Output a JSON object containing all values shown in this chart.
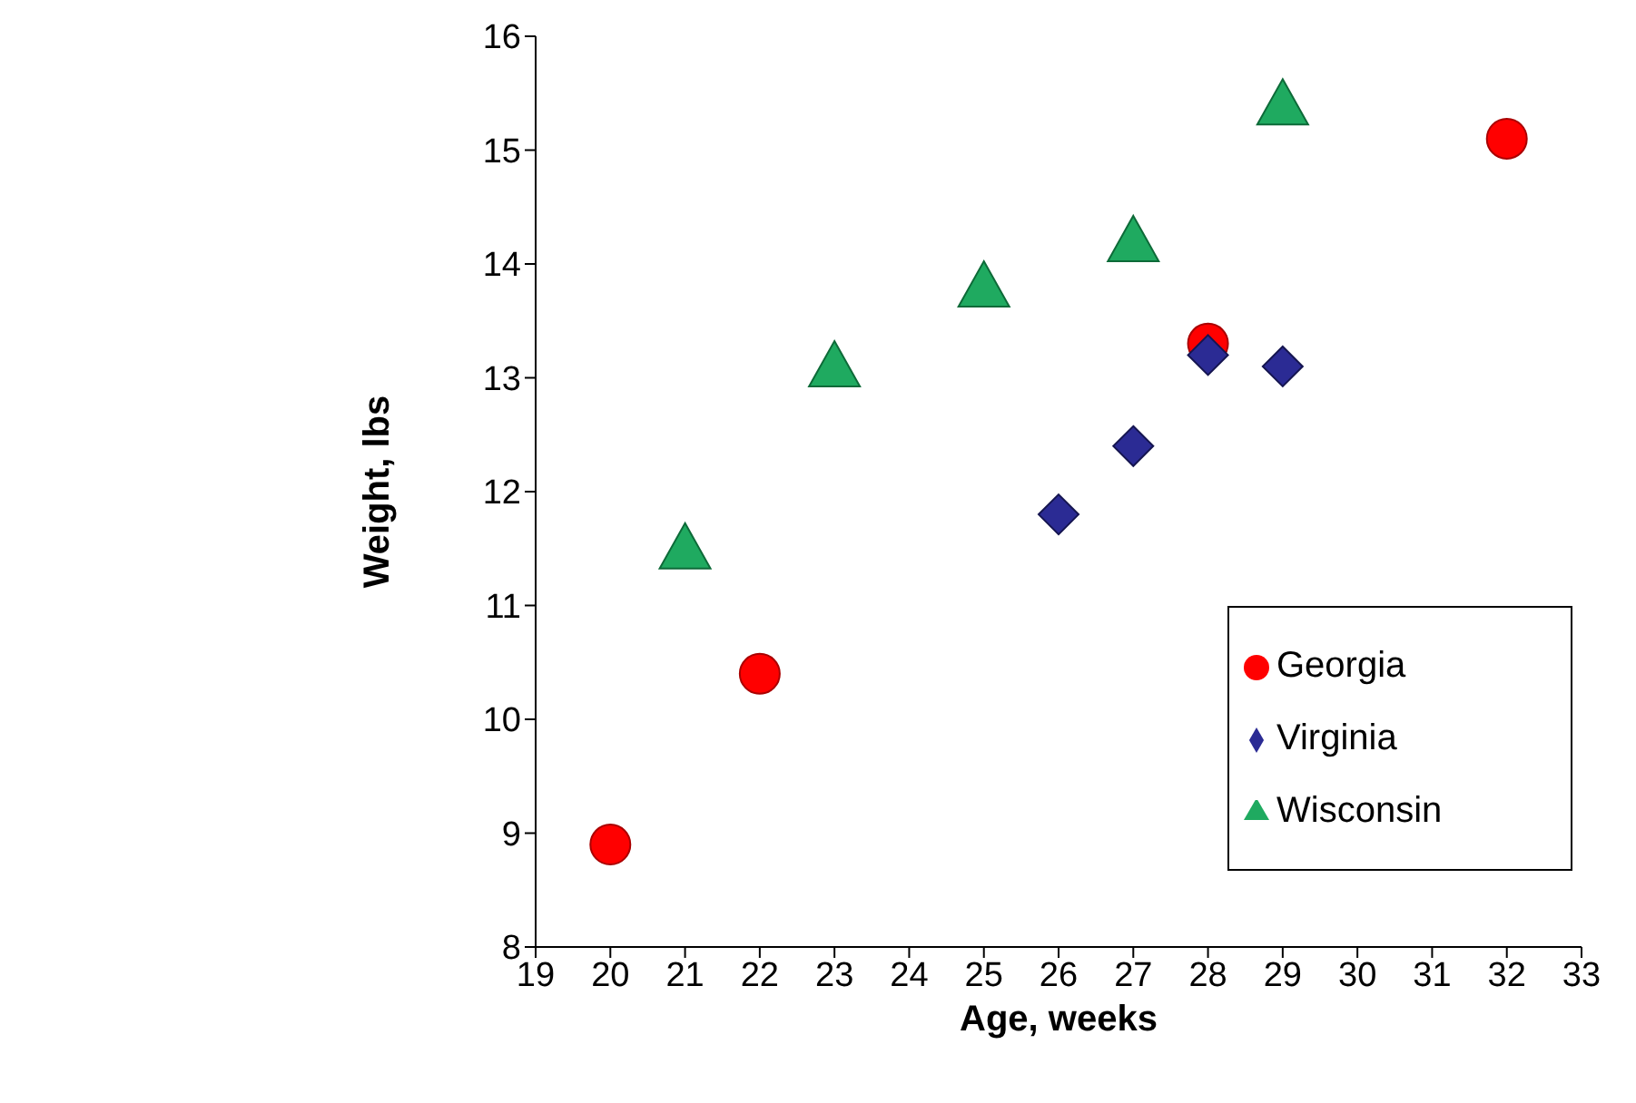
{
  "chart_data": {
    "type": "scatter",
    "xlabel": "Age, weeks",
    "ylabel": "Weight, lbs",
    "xlim": [
      19,
      33
    ],
    "xticks": [
      19,
      20,
      21,
      22,
      23,
      24,
      25,
      26,
      27,
      28,
      29,
      30,
      31,
      32,
      33
    ],
    "ylim": [
      8,
      16
    ],
    "yticks": [
      8,
      9,
      10,
      11,
      12,
      13,
      14,
      15,
      16
    ],
    "grid": false,
    "legend": "right",
    "series": [
      {
        "name": "Georgia",
        "color": "#ff0000",
        "marker": "circle",
        "x": [
          20,
          22,
          28,
          32
        ],
        "values": [
          8.9,
          10.4,
          13.3,
          15.1
        ]
      },
      {
        "name": "Virginia",
        "color": "#2b2b94",
        "marker": "diamond",
        "x": [
          26,
          27,
          28,
          29
        ],
        "values": [
          11.8,
          12.4,
          13.2,
          13.1
        ]
      },
      {
        "name": "Wisconsin",
        "color": "#1faa60",
        "marker": "triangle",
        "x": [
          21,
          23,
          25,
          27,
          29
        ],
        "values": [
          11.5,
          13.1,
          13.8,
          14.2,
          15.4
        ]
      }
    ]
  }
}
